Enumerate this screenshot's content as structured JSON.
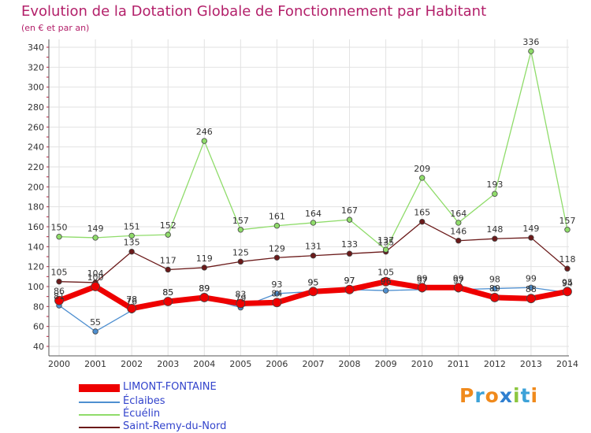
{
  "title": "Evolution de la Dotation Globale de Fonctionnement par Habitant",
  "subtitle": "(en € et par an)",
  "logo": {
    "text": "Proxiti",
    "letters": [
      "P",
      "r",
      "o",
      "x",
      "i",
      "t",
      "i"
    ],
    "colors": [
      "#f08a1c",
      "#3da2d8",
      "#f08a1c",
      "#2f7fd0",
      "#8cc63f",
      "#3da2d8",
      "#f08a1c"
    ]
  },
  "chart_data": {
    "type": "line",
    "title": "Evolution de la Dotation Globale de Fonctionnement par Habitant",
    "subtitle": "(en € et par an)",
    "xlabel": "",
    "ylabel": "",
    "ylim": [
      40,
      340
    ],
    "yticks": [
      40,
      60,
      80,
      100,
      120,
      140,
      160,
      180,
      200,
      220,
      240,
      260,
      280,
      300,
      320,
      340
    ],
    "grid": true,
    "legend_position": "bottom-left",
    "x": [
      "2000",
      "2001",
      "2002",
      "2003",
      "2004",
      "2005",
      "2006",
      "2007",
      "2008",
      "2009",
      "2010",
      "2011",
      "2012",
      "2013",
      "2014"
    ],
    "series": [
      {
        "name": "Saint-Remy-du-Nord",
        "color": "#6b1a1a",
        "values": [
          105,
          104,
          135,
          117,
          119,
          125,
          129,
          131,
          133,
          135,
          165,
          146,
          148,
          149,
          118
        ]
      },
      {
        "name": "Écuélin",
        "color": "#8fdc6a",
        "values": [
          150,
          149,
          151,
          152,
          246,
          157,
          161,
          164,
          167,
          137,
          209,
          164,
          193,
          336,
          157
        ]
      },
      {
        "name": "Éclaibes",
        "color": "#4e8fd0",
        "values": [
          81,
          55,
          76,
          85,
          89,
          79,
          93,
          95,
          97,
          96,
          97,
          97,
          98,
          99,
          94
        ]
      },
      {
        "name": "LIMONT-FONTAINE",
        "color": "#ee0000",
        "values": [
          86,
          100,
          78,
          85,
          89,
          83,
          84,
          95,
          97,
          105,
          99,
          99,
          89,
          88,
          95
        ]
      }
    ]
  }
}
